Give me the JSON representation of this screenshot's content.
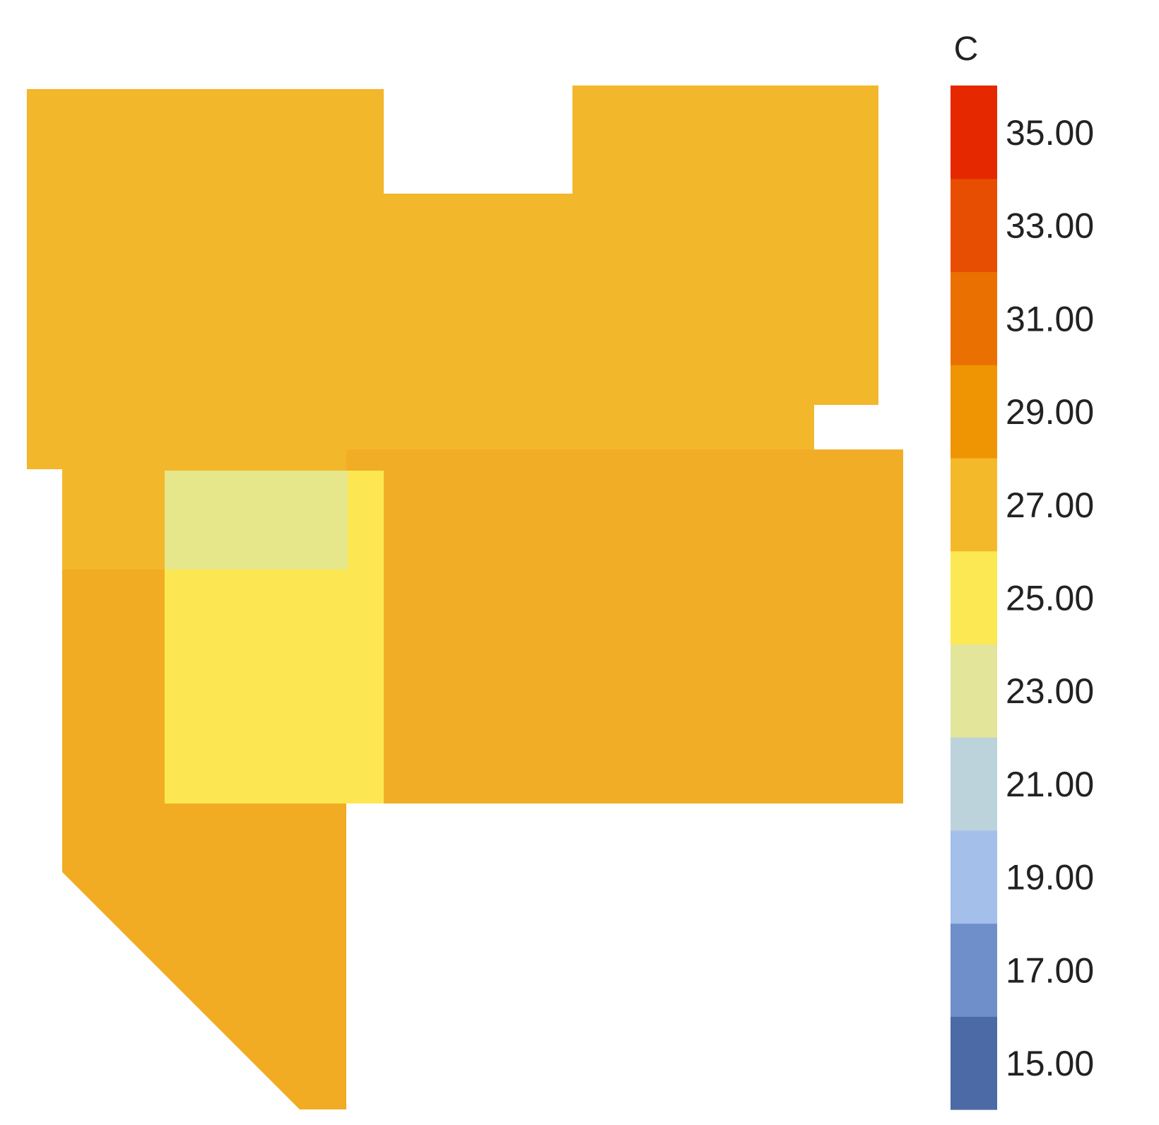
{
  "chart_data": {
    "type": "heatmap",
    "title": "",
    "colorbar": {
      "unit_label": "C",
      "min": 14,
      "max": 36,
      "tick_values": [
        15,
        17,
        19,
        21,
        23,
        25,
        27,
        29,
        31,
        33,
        35
      ],
      "tick_labels": [
        "15.00",
        "17.00",
        "19.00",
        "21.00",
        "23.00",
        "25.00",
        "27.00",
        "29.00",
        "31.00",
        "33.00",
        "35.00"
      ],
      "bands": [
        {
          "from": 14,
          "to": 16,
          "color": "#4c6aa6"
        },
        {
          "from": 16,
          "to": 18,
          "color": "#6e8fc9"
        },
        {
          "from": 18,
          "to": 20,
          "color": "#a3bfea"
        },
        {
          "from": 20,
          "to": 22,
          "color": "#bcd3dc"
        },
        {
          "from": 22,
          "to": 24,
          "color": "#e2e59a"
        },
        {
          "from": 24,
          "to": 26,
          "color": "#fce852"
        },
        {
          "from": 26,
          "to": 28,
          "color": "#f4b92b"
        },
        {
          "from": 28,
          "to": 30,
          "color": "#ef9403"
        },
        {
          "from": 30,
          "to": 32,
          "color": "#ea7002"
        },
        {
          "from": 32,
          "to": 34,
          "color": "#e84e02"
        },
        {
          "from": 34,
          "to": 36,
          "color": "#e52800"
        }
      ]
    },
    "zones": [
      {
        "id": "north-zone",
        "temperature_c": 27.2,
        "color": "#f3b72b"
      },
      {
        "id": "west-strip-zone",
        "temperature_c": 27.3,
        "color": "#f3b72b"
      },
      {
        "id": "central-light-zone",
        "temperature_c": 23.8,
        "color": "#e6e68a"
      },
      {
        "id": "central-yellow-zone",
        "temperature_c": 25.2,
        "color": "#fce752"
      },
      {
        "id": "east-zone",
        "temperature_c": 26.6,
        "color": "#f1ad26"
      },
      {
        "id": "west-lower-zone",
        "temperature_c": 26.5,
        "color": "#f1ac24"
      },
      {
        "id": "southwest-zone",
        "temperature_c": 26.5,
        "color": "#f1ac24"
      }
    ]
  }
}
